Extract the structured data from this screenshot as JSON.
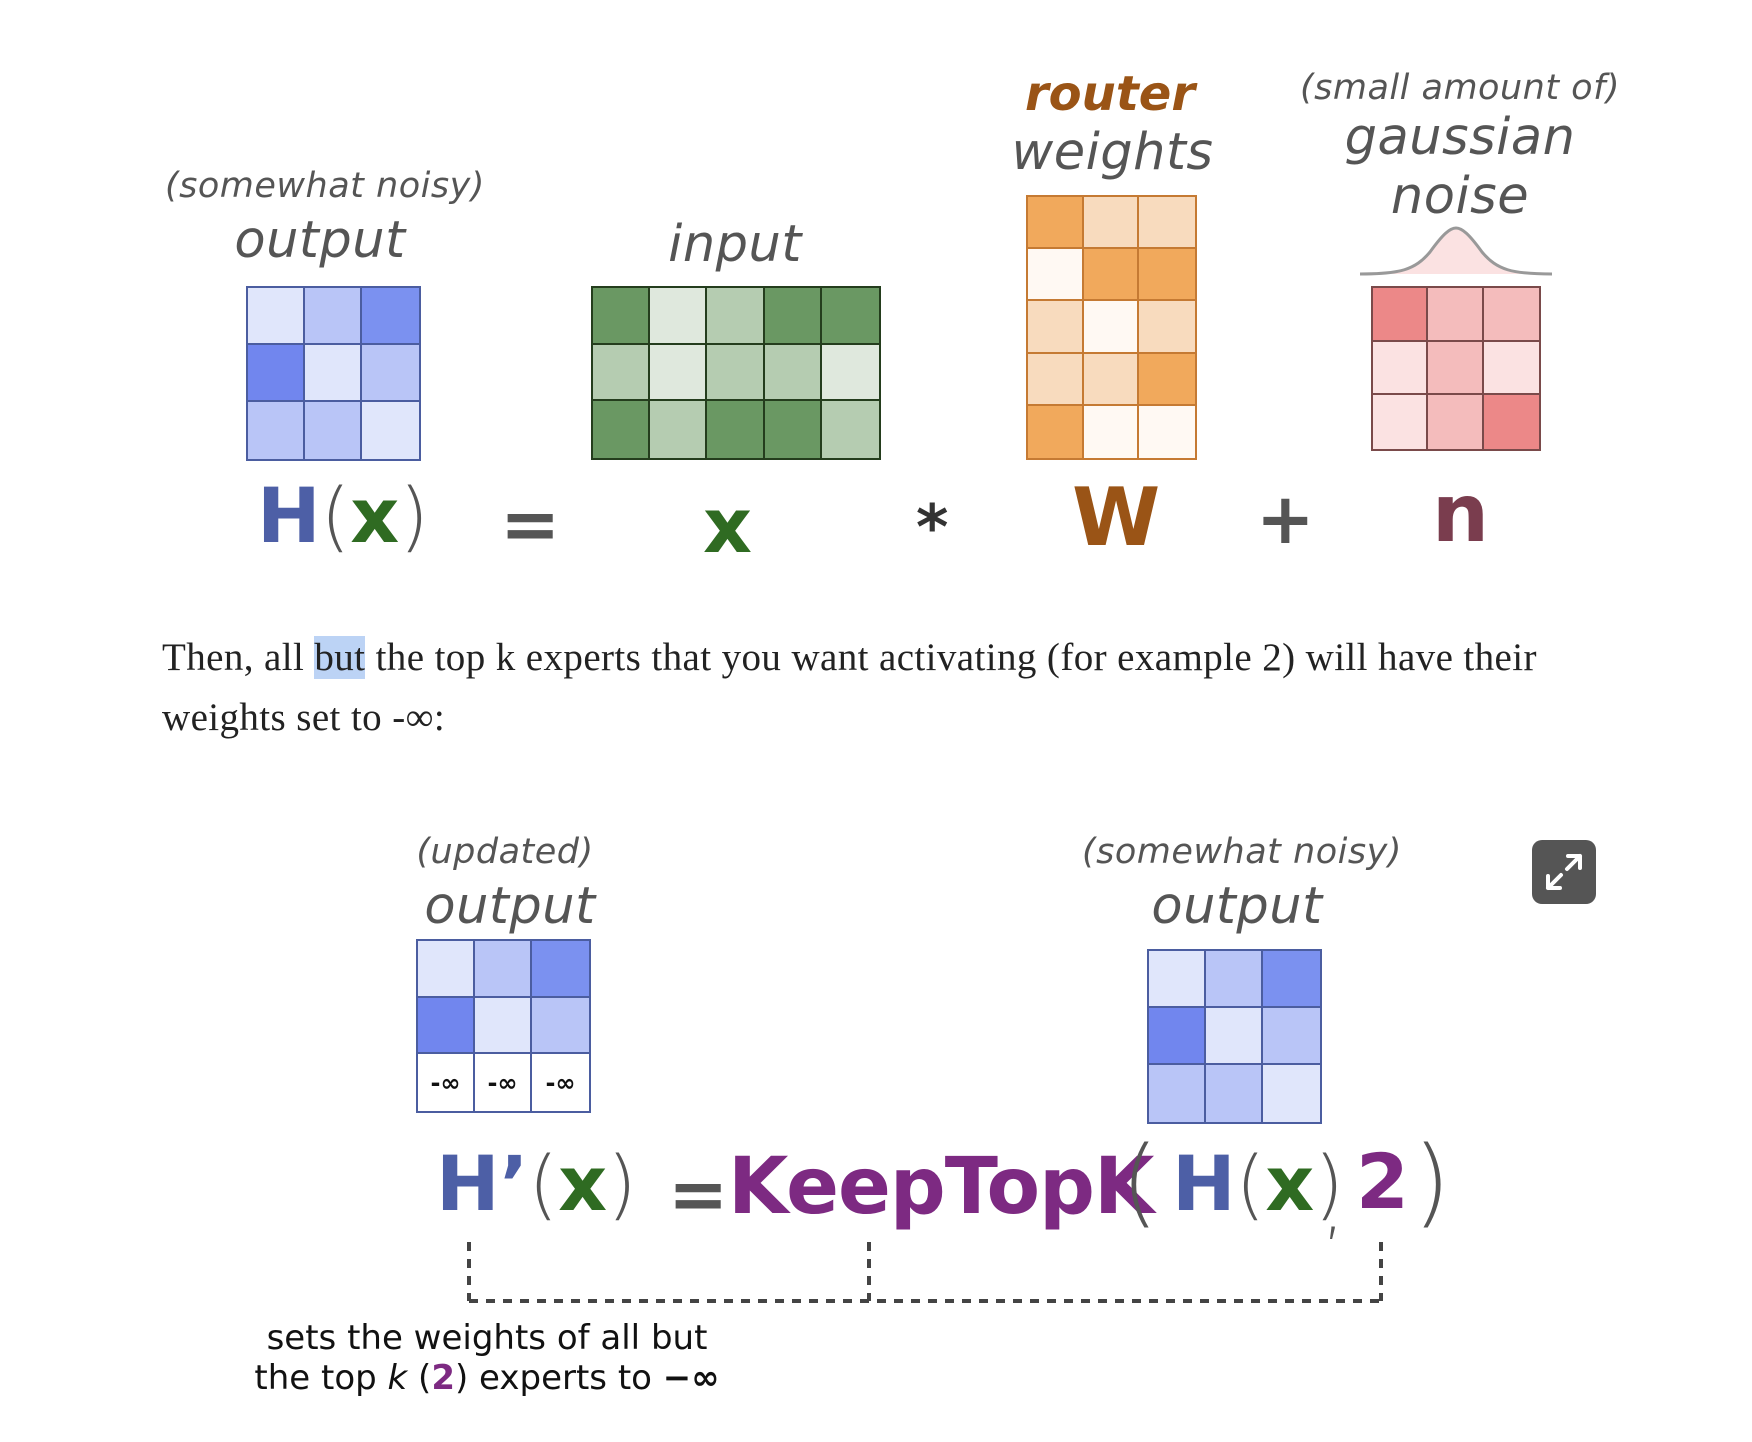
{
  "top_equation": {
    "output": {
      "qualifier": "(somewhat noisy)",
      "label": "output",
      "cells": [
        "#e0e6fb",
        "#b9c5f7",
        "#7b91f0",
        "#7186ee",
        "#e0e6fb",
        "#b9c5f7",
        "#b9c5f7",
        "#b9c5f7",
        "#e0e6fb"
      ]
    },
    "input": {
      "label": "input",
      "cells": [
        "#6a9863",
        "#dfe8dd",
        "#b5ccb1",
        "#6a9863",
        "#6a9863",
        "#b5ccb1",
        "#dfe8dd",
        "#b5ccb1",
        "#b5ccb1",
        "#dfe8dd",
        "#6a9863",
        "#b5ccb1",
        "#6a9863",
        "#6a9863",
        "#b5ccb1"
      ]
    },
    "router": {
      "highlight": "router",
      "label": "weights",
      "cells": [
        "#f1a95c",
        "#f8dbbe",
        "#f8dbbe",
        "#fff9f3",
        "#f1a95c",
        "#f1a95c",
        "#f8dbbe",
        "#fff9f3",
        "#f8dbbe",
        "#f8dbbe",
        "#f8dbbe",
        "#f1a95c",
        "#f1a95c",
        "#fff9f3",
        "#fff9f3"
      ]
    },
    "noise": {
      "qualifier": "(small amount of)",
      "label_line1": "gaussian",
      "label_line2": "noise",
      "cells": [
        "#ec8888",
        "#f4bcbc",
        "#f4bcbc",
        "#fbe2e2",
        "#f4bcbc",
        "#fbe2e2",
        "#fbe2e2",
        "#f4bcbc",
        "#ec8888"
      ]
    },
    "formula": {
      "H": "H",
      "open": "(",
      "x_arg": "x",
      "close": ")",
      "equals": "=",
      "x": "x",
      "times": "*",
      "W": "W",
      "plus": "+",
      "n": "n"
    }
  },
  "paragraph": {
    "before": "Then, all ",
    "highlight": "but",
    "after": " the top k experts that you want activating (for example 2) will have their weights set to -∞:"
  },
  "bottom_equation": {
    "updated_output": {
      "qualifier": "(updated)",
      "label": "output",
      "cells": [
        "#e0e6fb",
        "#b9c5f7",
        "#7b91f0",
        "#7186ee",
        "#e0e6fb",
        "#b9c5f7"
      ],
      "neg_inf": [
        "-∞",
        "-∞",
        "-∞"
      ]
    },
    "noisy_output": {
      "qualifier": "(somewhat noisy)",
      "label": "output",
      "cells": [
        "#e0e6fb",
        "#b9c5f7",
        "#7b91f0",
        "#7186ee",
        "#e0e6fb",
        "#b9c5f7",
        "#b9c5f7",
        "#b9c5f7",
        "#e0e6fb"
      ]
    },
    "formula": {
      "Hprime": "H’",
      "open": "(",
      "x_arg": "x",
      "close": ")",
      "equals": "=",
      "func": "KeepTopK",
      "func_open": "(",
      "inner_H": "H",
      "inner_open": "(",
      "inner_x": "x",
      "inner_close": ")",
      "comma": ",",
      "k": "2",
      "func_close": ")"
    },
    "note": {
      "line1": "sets the weights of all but",
      "line2_a": "the top ",
      "line2_k": "k",
      "line2_b": " (",
      "line2_num": "2",
      "line2_c": ") experts to ",
      "line2_inf": "−∞"
    }
  },
  "colors": {
    "blue": "#4d5fa6",
    "green": "#2f6b22",
    "brown": "#9a5416",
    "maroon": "#7a3d4e",
    "purple": "#7d2a82",
    "grey": "#555555"
  }
}
